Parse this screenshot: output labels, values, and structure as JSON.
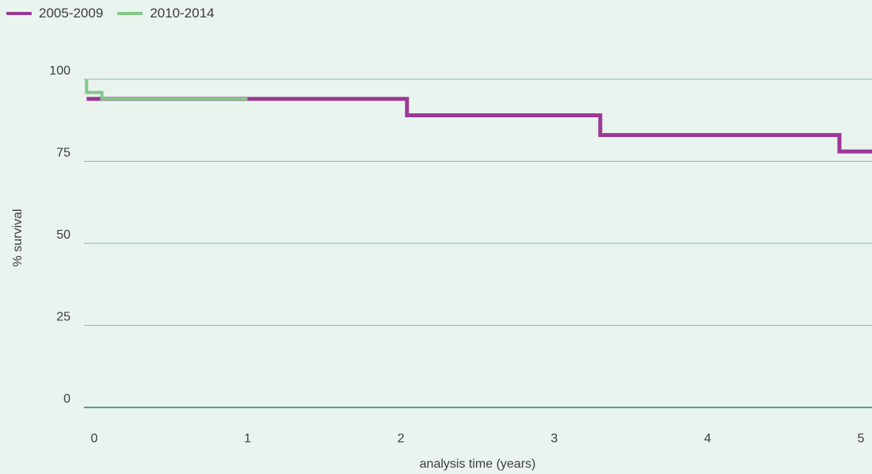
{
  "chart_data": {
    "type": "line",
    "step": true,
    "title": "",
    "xlabel": "analysis time (years)",
    "ylabel": "% survival",
    "xlim": [
      0,
      5
    ],
    "ylim": [
      0,
      100
    ],
    "x_ticks": [
      "0",
      "1",
      "2",
      "3",
      "4",
      "5"
    ],
    "y_ticks": [
      "100",
      "75",
      "50",
      "25",
      "0"
    ],
    "grid": "horizontal",
    "legend_position": "top-left",
    "series": [
      {
        "name": "2005-2009",
        "color": "#9b3894",
        "x": [
          -0.05,
          2.04,
          2.04,
          3.3,
          3.3,
          4.86,
          4.86,
          5.1
        ],
        "y": [
          94,
          94,
          89,
          89,
          83,
          83,
          78,
          78
        ]
      },
      {
        "name": "2010-2014",
        "color": "#84c888",
        "x": [
          -0.05,
          -0.05,
          0.05,
          0.05,
          1.0
        ],
        "y": [
          100,
          96,
          96,
          94,
          94
        ]
      }
    ]
  }
}
